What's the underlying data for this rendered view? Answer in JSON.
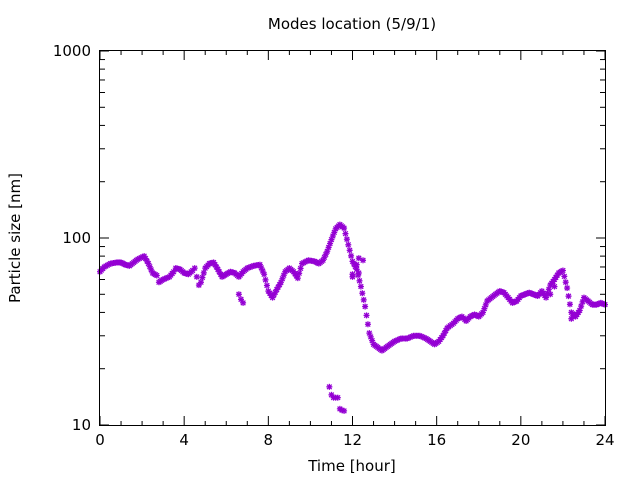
{
  "chart_data": {
    "type": "scatter",
    "title": "Modes location (5/9/1)",
    "xlabel": "Time [hour]",
    "ylabel": "Particle size [nm]",
    "xlim": [
      0,
      24
    ],
    "ylim": [
      10,
      1000
    ],
    "yscale": "log",
    "grid": false,
    "legend": "none",
    "marker": "star",
    "color": "#9400D3",
    "xticks": [
      {
        "value": 0,
        "label": "0"
      },
      {
        "value": 4,
        "label": "4"
      },
      {
        "value": 8,
        "label": "8"
      },
      {
        "value": 12,
        "label": "12"
      },
      {
        "value": 16,
        "label": "16"
      },
      {
        "value": 20,
        "label": "20"
      },
      {
        "value": 24,
        "label": "24"
      }
    ],
    "yticks": [
      {
        "value": 10,
        "label": "10"
      },
      {
        "value": 100,
        "label": "100"
      },
      {
        "value": 1000,
        "label": "1000"
      }
    ],
    "series": [
      {
        "anchors": [
          [
            0.0,
            66
          ],
          [
            0.2,
            70
          ],
          [
            0.5,
            73
          ],
          [
            0.8,
            74
          ],
          [
            1.0,
            74
          ],
          [
            1.2,
            72
          ],
          [
            1.4,
            71
          ],
          [
            1.6,
            74
          ],
          [
            1.8,
            77
          ],
          [
            2.1,
            80
          ],
          [
            2.3,
            73
          ],
          [
            2.5,
            65
          ],
          [
            2.7,
            63
          ],
          [
            2.8,
            58
          ],
          [
            3.0,
            60
          ],
          [
            3.3,
            62
          ],
          [
            3.5,
            66
          ],
          [
            3.6,
            69
          ],
          [
            3.8,
            68
          ],
          [
            4.0,
            65
          ],
          [
            4.2,
            64
          ],
          [
            4.4,
            67
          ],
          [
            4.5,
            69
          ],
          [
            4.6,
            62
          ],
          [
            4.7,
            56
          ],
          [
            4.8,
            58
          ],
          [
            5.0,
            69
          ],
          [
            5.2,
            73
          ],
          [
            5.4,
            74
          ],
          [
            5.6,
            68
          ],
          [
            5.8,
            62
          ],
          [
            6.0,
            64
          ],
          [
            6.2,
            66
          ],
          [
            6.4,
            65
          ],
          [
            6.6,
            62
          ],
          [
            6.8,
            66
          ],
          [
            7.0,
            69
          ],
          [
            7.3,
            71
          ],
          [
            7.6,
            72
          ],
          [
            7.8,
            64
          ],
          [
            8.0,
            52
          ],
          [
            8.2,
            48
          ],
          [
            8.4,
            53
          ],
          [
            8.6,
            58
          ],
          [
            8.8,
            66
          ],
          [
            9.0,
            69
          ],
          [
            9.2,
            66
          ],
          [
            9.4,
            61
          ],
          [
            9.6,
            73
          ],
          [
            9.9,
            76
          ],
          [
            10.2,
            75
          ],
          [
            10.4,
            73
          ],
          [
            10.6,
            76
          ],
          [
            10.8,
            85
          ],
          [
            11.0,
            98
          ],
          [
            11.2,
            112
          ],
          [
            11.4,
            118
          ],
          [
            11.6,
            113
          ],
          [
            11.8,
            92
          ],
          [
            12.0,
            75
          ],
          [
            12.2,
            68
          ],
          [
            12.4,
            55
          ],
          [
            12.6,
            43
          ],
          [
            12.8,
            31
          ],
          [
            13.0,
            27
          ],
          [
            13.2,
            26
          ],
          [
            13.4,
            25
          ],
          [
            13.6,
            26
          ],
          [
            13.8,
            27
          ],
          [
            14.0,
            28
          ],
          [
            14.3,
            29
          ],
          [
            14.6,
            29
          ],
          [
            14.9,
            30
          ],
          [
            15.2,
            30
          ],
          [
            15.5,
            29
          ],
          [
            15.7,
            28
          ],
          [
            15.9,
            27
          ],
          [
            16.1,
            28
          ],
          [
            16.3,
            30
          ],
          [
            16.5,
            33
          ],
          [
            16.8,
            35
          ],
          [
            17.0,
            37
          ],
          [
            17.2,
            38
          ],
          [
            17.4,
            36
          ],
          [
            17.6,
            38
          ],
          [
            17.8,
            39
          ],
          [
            18.0,
            38
          ],
          [
            18.2,
            40
          ],
          [
            18.4,
            46
          ],
          [
            18.6,
            48
          ],
          [
            18.8,
            50
          ],
          [
            19.0,
            52
          ],
          [
            19.2,
            51
          ],
          [
            19.4,
            48
          ],
          [
            19.6,
            45
          ],
          [
            19.8,
            46
          ],
          [
            20.0,
            49
          ],
          [
            20.2,
            50
          ],
          [
            20.4,
            51
          ],
          [
            20.6,
            50
          ],
          [
            20.8,
            49
          ],
          [
            21.0,
            52
          ],
          [
            21.2,
            48
          ],
          [
            21.4,
            56
          ],
          [
            21.6,
            60
          ],
          [
            21.8,
            65
          ],
          [
            22.0,
            67
          ],
          [
            22.2,
            54
          ],
          [
            22.4,
            40
          ],
          [
            22.6,
            38
          ],
          [
            22.8,
            41
          ],
          [
            23.0,
            48
          ],
          [
            23.2,
            46
          ],
          [
            23.4,
            44
          ],
          [
            23.6,
            44
          ],
          [
            23.8,
            45
          ],
          [
            24.0,
            44
          ]
        ],
        "extra_points": [
          [
            6.6,
            50
          ],
          [
            6.7,
            47
          ],
          [
            6.8,
            45
          ],
          [
            12.0,
            64
          ],
          [
            12.2,
            72
          ],
          [
            12.3,
            78
          ],
          [
            12.5,
            76
          ],
          [
            12.0,
            62
          ],
          [
            10.9,
            16
          ],
          [
            11.0,
            14.5
          ],
          [
            11.1,
            14
          ],
          [
            11.2,
            14
          ],
          [
            11.3,
            14
          ],
          [
            11.4,
            12.2
          ],
          [
            11.5,
            12.0
          ],
          [
            11.6,
            11.9
          ],
          [
            12.3,
            65
          ],
          [
            21.4,
            50
          ],
          [
            21.6,
            55
          ],
          [
            22.4,
            37
          ],
          [
            22.5,
            38
          ]
        ]
      }
    ]
  }
}
